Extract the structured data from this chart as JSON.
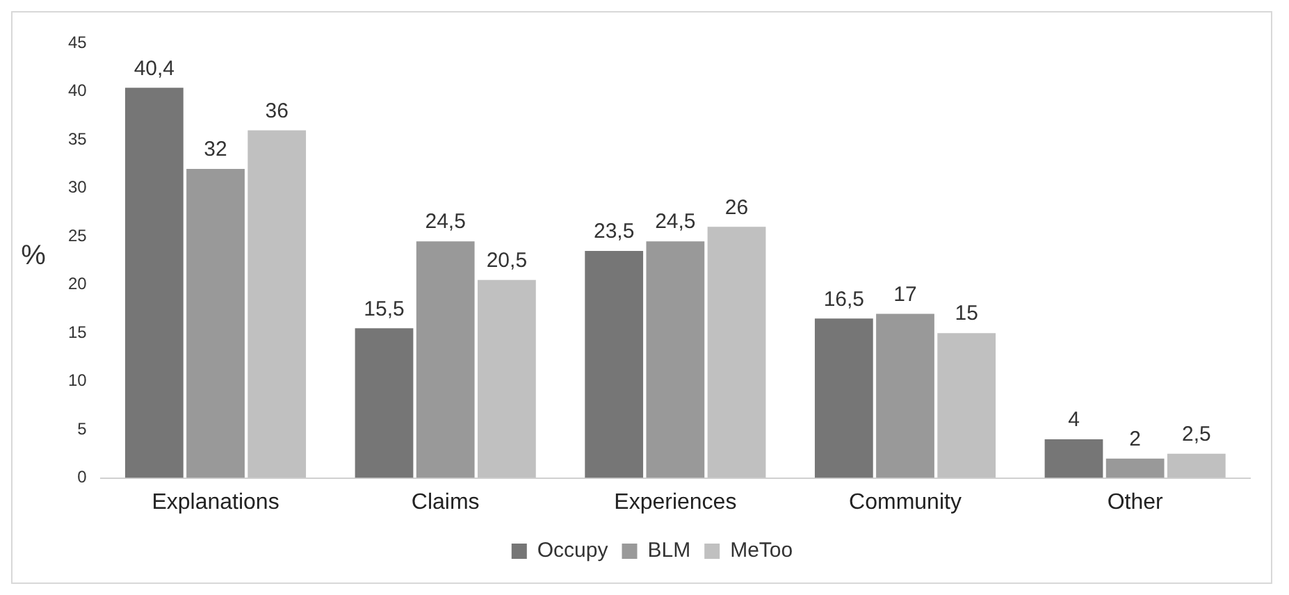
{
  "chart_data": {
    "type": "bar",
    "ylabel": "%",
    "categories": [
      "Explanations",
      "Claims",
      "Experiences",
      "Community",
      "Other"
    ],
    "series": [
      {
        "name": "Occupy",
        "color": "#767676",
        "values": [
          40.4,
          15.5,
          23.5,
          16.5,
          4
        ],
        "value_labels": [
          "40,4",
          "15,5",
          "23,5",
          "16,5",
          "4"
        ]
      },
      {
        "name": "BLM",
        "color": "#999999",
        "values": [
          32,
          24.5,
          24.5,
          17,
          2
        ],
        "value_labels": [
          "32",
          "24,5",
          "24,5",
          "17",
          "2"
        ]
      },
      {
        "name": "MeToo",
        "color": "#c0c0c0",
        "values": [
          36,
          20.5,
          26,
          15,
          2.5
        ],
        "value_labels": [
          "36",
          "20,5",
          "26",
          "15",
          "2,5"
        ]
      }
    ],
    "ylim": [
      0,
      45
    ],
    "yticks": [
      0,
      5,
      10,
      15,
      20,
      25,
      30,
      35,
      40,
      45
    ],
    "grid": false,
    "legend": "bottom"
  }
}
